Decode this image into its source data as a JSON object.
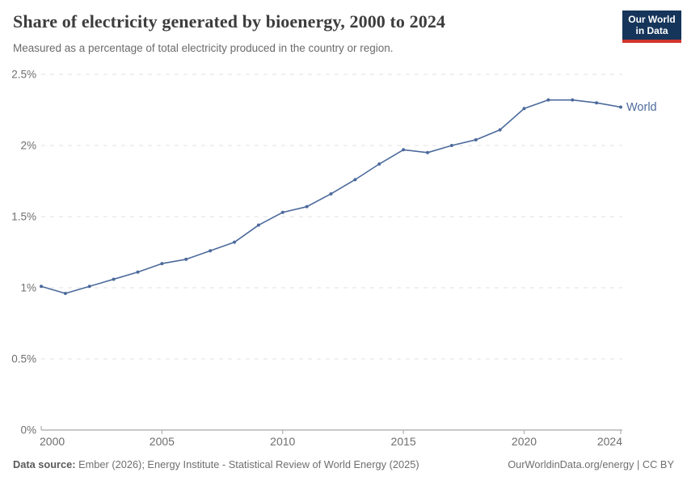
{
  "header": {
    "title": "Share of electricity generated by bioenergy, 2000 to 2024",
    "subtitle": "Measured as a percentage of total electricity produced in the country or region.",
    "logo": {
      "line1": "Our World",
      "line2": "in Data"
    }
  },
  "footer": {
    "source_label": "Data source:",
    "source_text": " Ember (2026); Energy Institute - Statistical Review of World Energy (2025)",
    "link_text": "OurWorldinData.org/energy | CC BY"
  },
  "colors": {
    "line": "#4C6A9C",
    "end_label": "#4C6A9C",
    "grid": "#e2e2e2",
    "axis": "#a6a6a6",
    "tick": "#b0b0b0",
    "tick_label": "#6e6e6e",
    "title_text": "#3d3d3d",
    "logo_bg": "#15355a",
    "logo_accent": "#d0342c"
  },
  "chart_data": {
    "type": "line",
    "title": "Share of electricity generated by bioenergy, 2000 to 2024",
    "xlabel": "",
    "ylabel": "",
    "grid": "horizontal-dashed",
    "legend_position": "end-of-line",
    "end_label": "World",
    "ylim": [
      0,
      2.5
    ],
    "xlim": [
      2000,
      2024
    ],
    "x": [
      2000,
      2001,
      2002,
      2003,
      2004,
      2005,
      2006,
      2007,
      2008,
      2009,
      2010,
      2011,
      2012,
      2013,
      2014,
      2015,
      2016,
      2017,
      2018,
      2019,
      2020,
      2021,
      2022,
      2023,
      2024
    ],
    "series": [
      {
        "name": "World",
        "values": [
          1.01,
          0.96,
          1.01,
          1.06,
          1.11,
          1.17,
          1.2,
          1.26,
          1.32,
          1.44,
          1.53,
          1.57,
          1.66,
          1.76,
          1.87,
          1.97,
          1.95,
          2.0,
          2.04,
          2.11,
          2.26,
          2.32,
          2.32,
          2.3,
          2.27
        ]
      }
    ],
    "yticks": [
      {
        "value": 0,
        "label": "0%"
      },
      {
        "value": 0.5,
        "label": "0.5%"
      },
      {
        "value": 1,
        "label": "1%"
      },
      {
        "value": 1.5,
        "label": "1.5%"
      },
      {
        "value": 2,
        "label": "2%"
      },
      {
        "value": 2.5,
        "label": "2.5%"
      }
    ],
    "xticks": [
      {
        "value": 2000,
        "label": "2000"
      },
      {
        "value": 2005,
        "label": "2005"
      },
      {
        "value": 2010,
        "label": "2010"
      },
      {
        "value": 2015,
        "label": "2015"
      },
      {
        "value": 2020,
        "label": "2020"
      },
      {
        "value": 2024,
        "label": "2024"
      }
    ]
  }
}
